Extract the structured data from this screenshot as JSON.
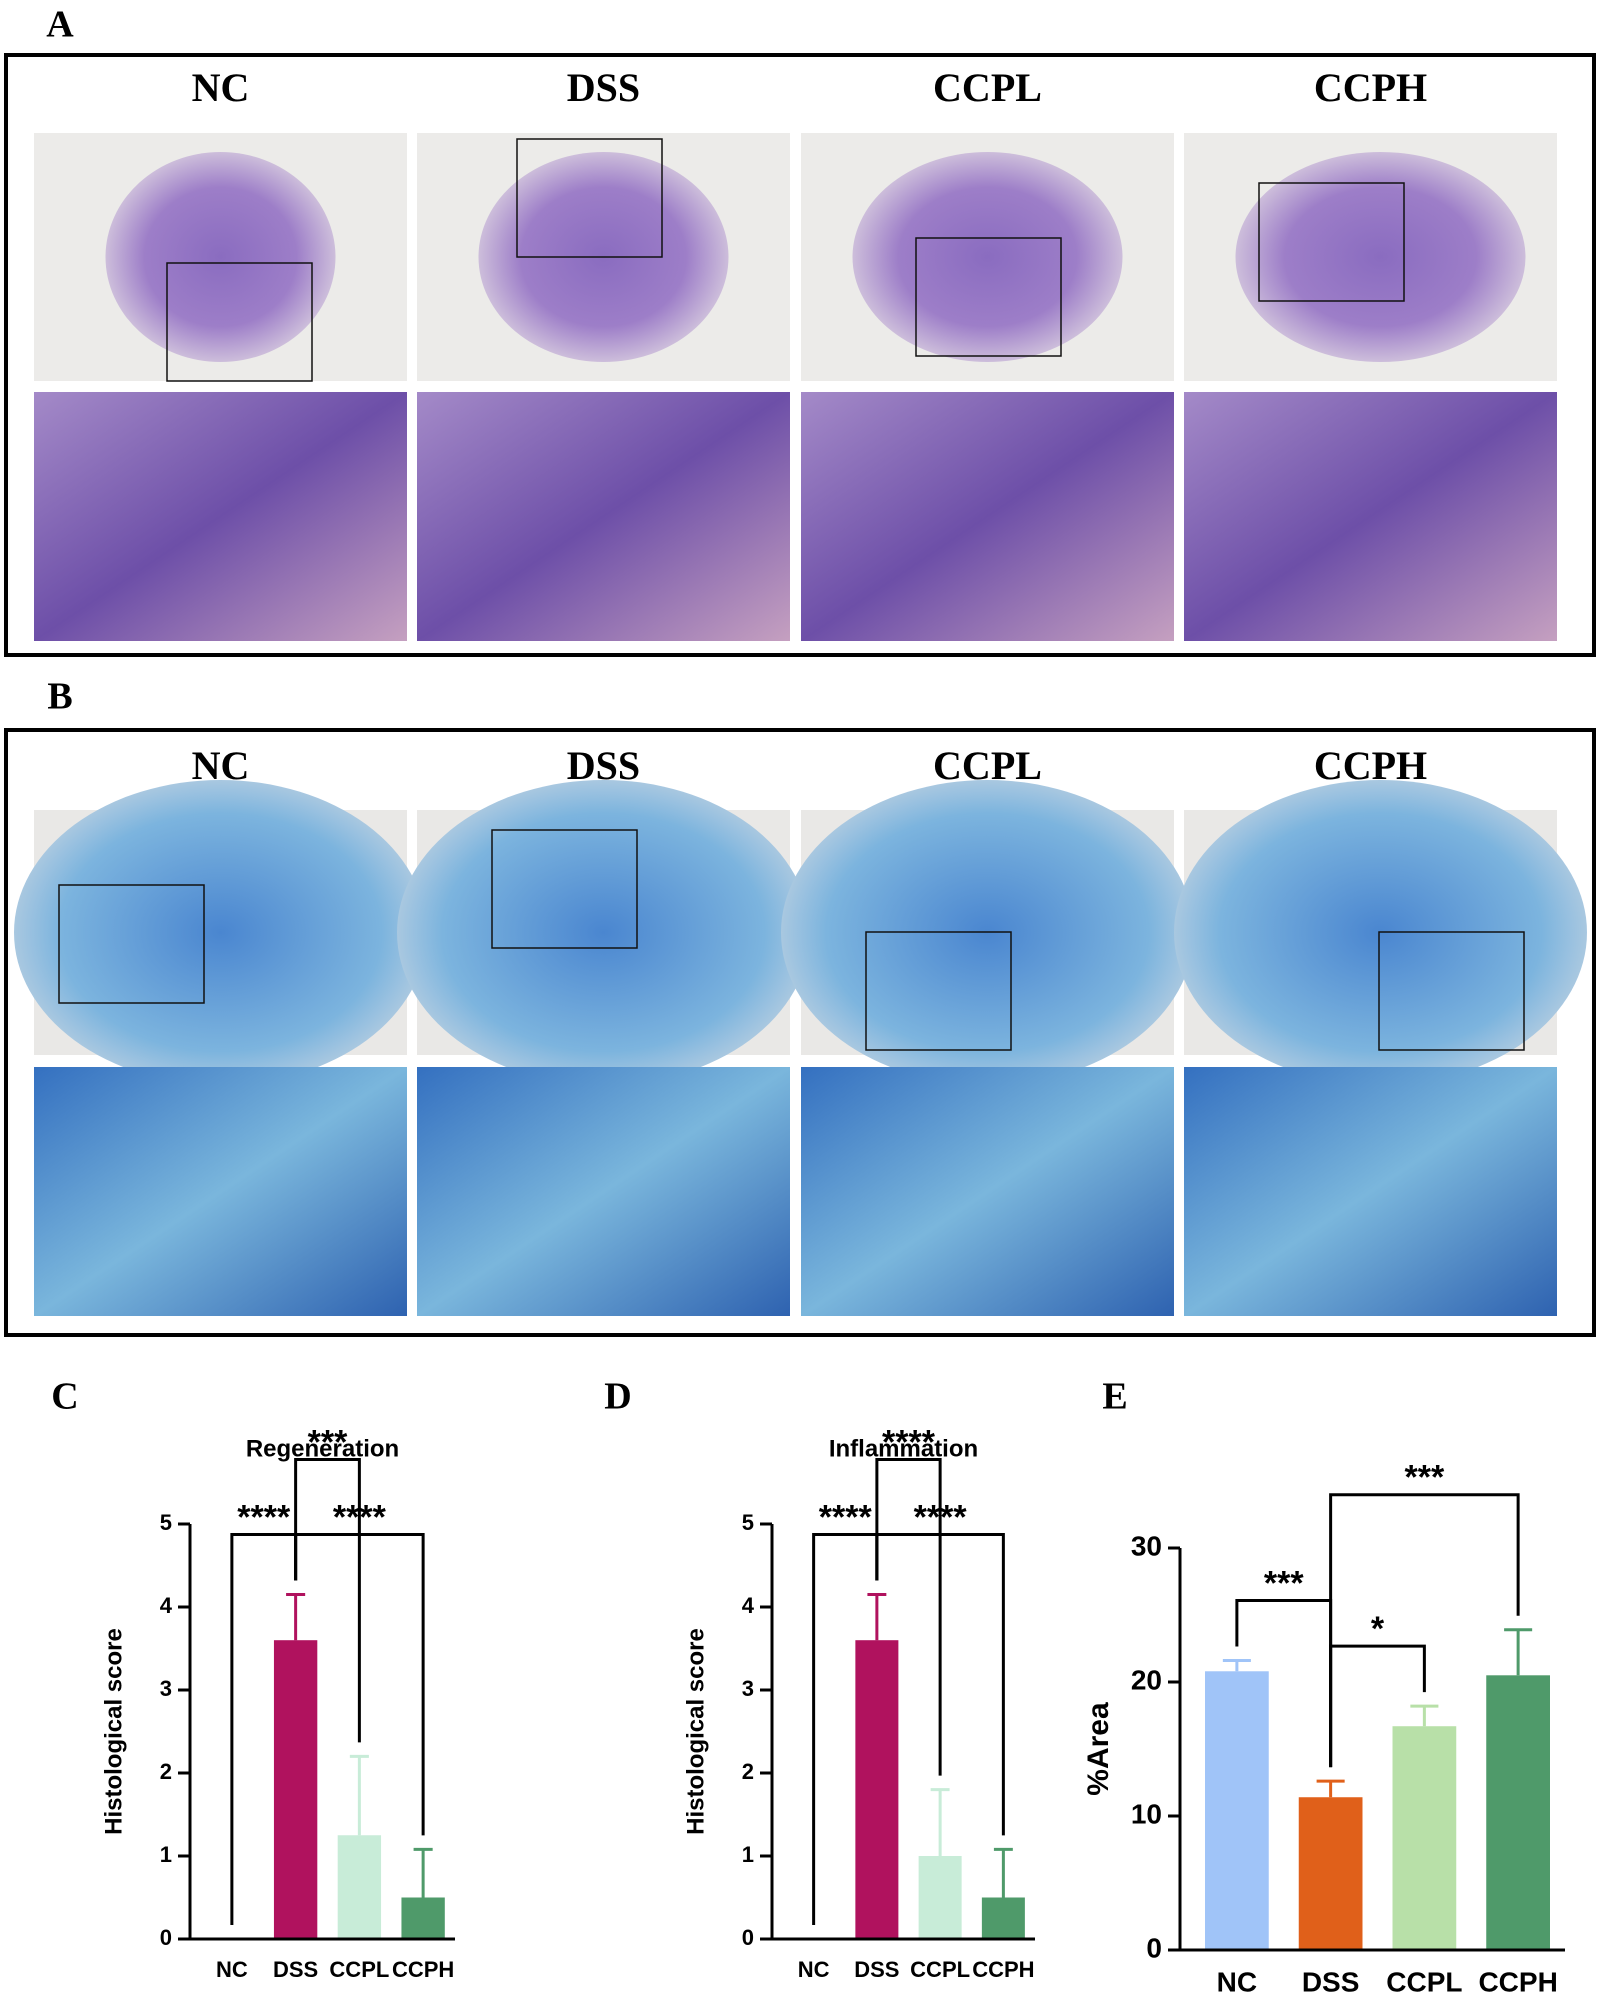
{
  "histology_panels": [
    {
      "label": "A",
      "groups": [
        "NC",
        "DSS",
        "CCPL",
        "CCPH"
      ]
    },
    {
      "label": "B",
      "groups": [
        "NC",
        "DSS",
        "CCPL",
        "CCPH"
      ]
    }
  ],
  "chart_data": [
    {
      "panel": "C",
      "type": "bar",
      "title": "Regeneration",
      "ylabel": "Histological score",
      "categories": [
        "NC",
        "DSS",
        "CCPL",
        "CCPH"
      ],
      "values": [
        0,
        3.6,
        1.25,
        0.5
      ],
      "errors": [
        0,
        0.55,
        0.95,
        0.58
      ],
      "colors": [
        "#a0c4f8",
        "#b0125e",
        "#c8ecd8",
        "#4f9a6a"
      ],
      "ylim": [
        0,
        5
      ],
      "yticks": [
        0,
        1,
        2,
        3,
        4,
        5
      ],
      "comparisons": [
        {
          "pair": [
            0,
            1
          ],
          "label": "****"
        },
        {
          "pair": [
            1,
            3
          ],
          "label": "****"
        },
        {
          "pair": [
            1,
            2
          ],
          "label": "***"
        }
      ]
    },
    {
      "panel": "D",
      "type": "bar",
      "title": "Inflammation",
      "ylabel": "Histological score",
      "categories": [
        "NC",
        "DSS",
        "CCPL",
        "CCPH"
      ],
      "values": [
        0,
        3.6,
        1.0,
        0.5
      ],
      "errors": [
        0,
        0.55,
        0.8,
        0.58
      ],
      "colors": [
        "#a0c4f8",
        "#b0125e",
        "#c8ecd8",
        "#4f9a6a"
      ],
      "ylim": [
        0,
        5
      ],
      "yticks": [
        0,
        1,
        2,
        3,
        4,
        5
      ],
      "comparisons": [
        {
          "pair": [
            0,
            1
          ],
          "label": "****"
        },
        {
          "pair": [
            1,
            3
          ],
          "label": "****"
        },
        {
          "pair": [
            1,
            2
          ],
          "label": "****"
        }
      ]
    },
    {
      "panel": "E",
      "type": "bar",
      "ylabel": "%Area",
      "categories": [
        "NC",
        "DSS",
        "CCPL",
        "CCPH"
      ],
      "values": [
        20.8,
        11.4,
        16.7,
        20.5
      ],
      "errors": [
        0.8,
        1.2,
        1.5,
        3.4
      ],
      "colors": [
        "#a0c4f8",
        "#e0601a",
        "#b8e0a8",
        "#4f9a6a"
      ],
      "ylim": [
        0,
        30
      ],
      "yticks": [
        0,
        10,
        20,
        30
      ],
      "comparisons": [
        {
          "pair": [
            0,
            1
          ],
          "label": "***"
        },
        {
          "pair": [
            1,
            2
          ],
          "label": "*"
        },
        {
          "pair": [
            1,
            3
          ],
          "label": "***"
        }
      ]
    }
  ]
}
